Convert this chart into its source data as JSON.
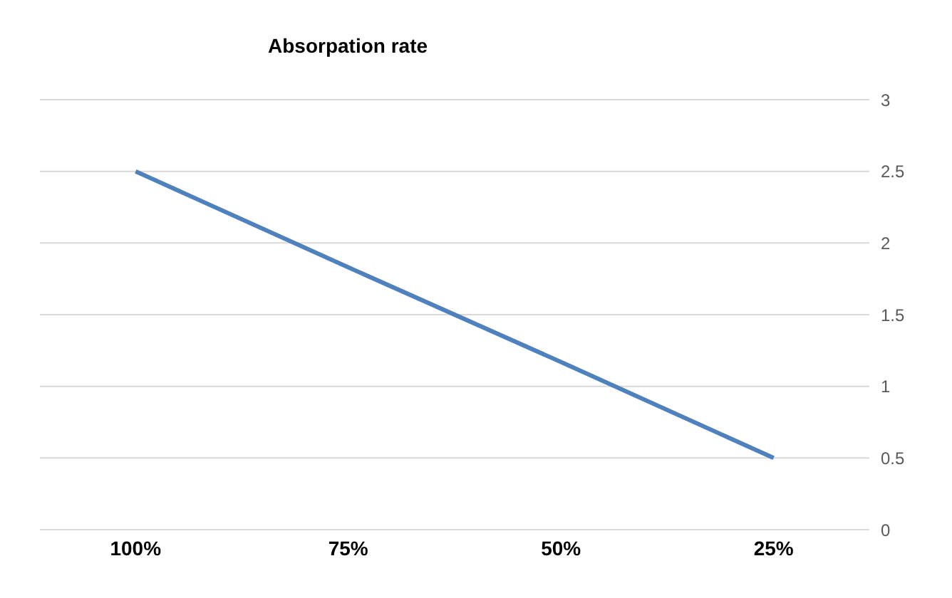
{
  "chart_data": {
    "type": "line",
    "title": "Absorpation rate",
    "categories": [
      "100%",
      "75%",
      "50%",
      "25%"
    ],
    "series": [
      {
        "color": "#4f81bd",
        "values": [
          2.5,
          1.83,
          1.17,
          0.5
        ]
      }
    ],
    "ylim": [
      0,
      3
    ],
    "yticks": [
      0,
      0.5,
      1,
      1.5,
      2,
      2.5,
      3
    ],
    "grid": "y",
    "legend": false,
    "marker": "none",
    "line_style": "solid"
  }
}
